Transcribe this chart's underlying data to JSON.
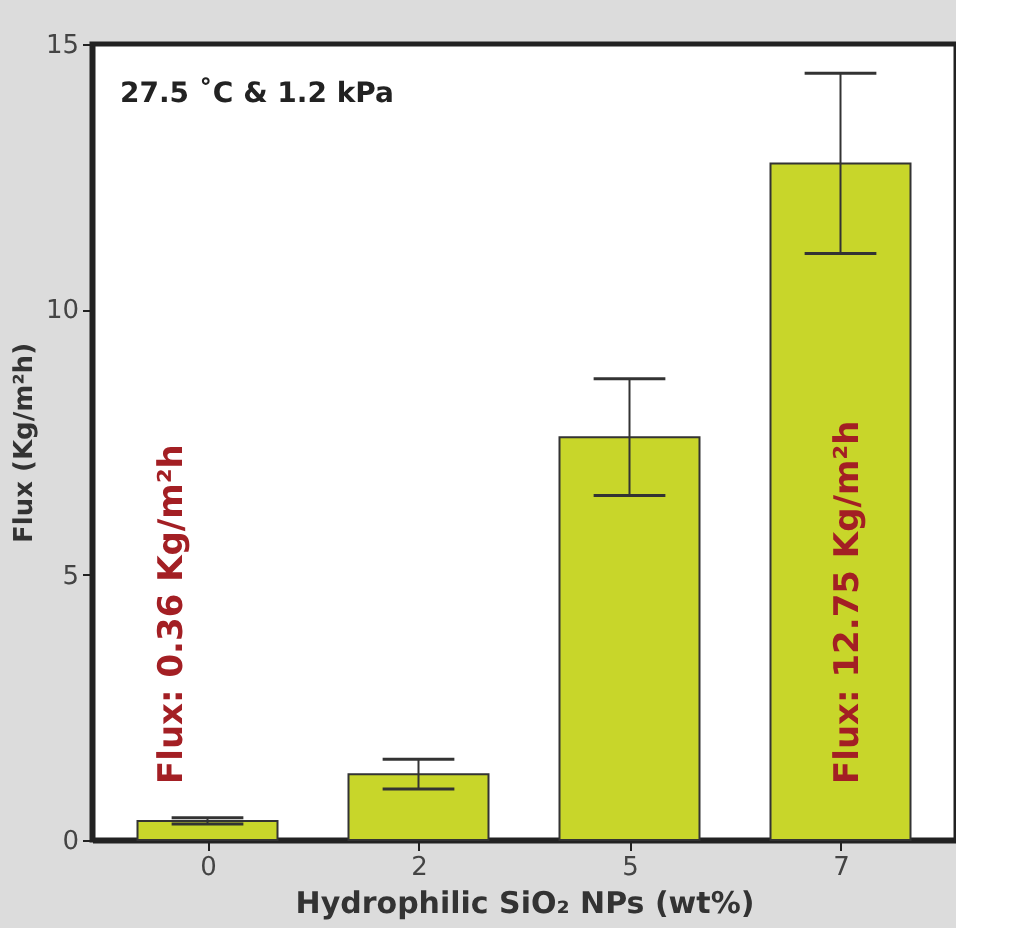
{
  "chart_data": {
    "type": "bar",
    "categories": [
      "0",
      "2",
      "5",
      "7"
    ],
    "values": [
      0.36,
      1.24,
      7.59,
      12.75
    ],
    "errors": [
      0.06,
      0.28,
      1.1,
      1.7
    ],
    "color": "#c8d62a",
    "xlabel": "Hydrophilic SiO₂ NPs (wt%)",
    "ylabel": "Flux (Kg/m²h)",
    "ylim": [
      0,
      15
    ],
    "yticks": [
      0,
      5,
      10,
      15
    ],
    "grid": false,
    "annotations": [
      "27.5 ˚C & 1.2 kPa",
      "Flux: 0.36 Kg/m²h",
      "Flux: 12.75 Kg/m²h"
    ]
  }
}
